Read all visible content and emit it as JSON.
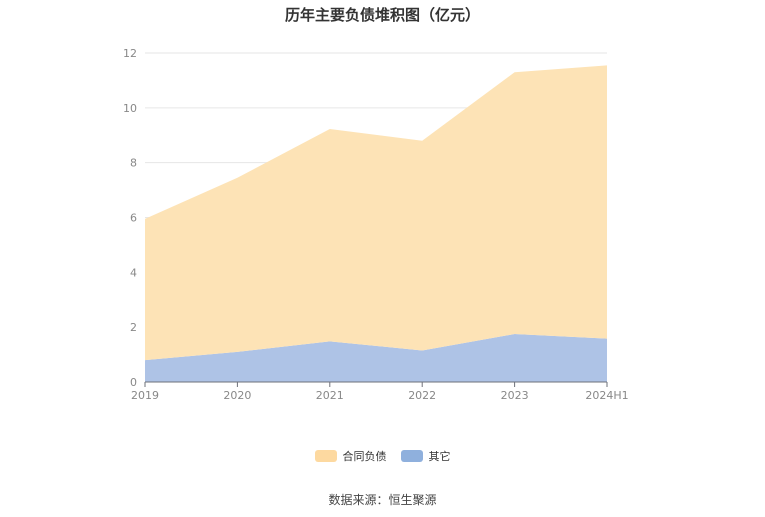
{
  "chart_data": {
    "type": "area",
    "stacked": true,
    "title": "历年主要负债堆积图（亿元）",
    "categories": [
      "2019",
      "2020",
      "2021",
      "2022",
      "2023",
      "2024H1"
    ],
    "y_ticks": [
      "0",
      "2",
      "4",
      "6",
      "8",
      "10",
      "12"
    ],
    "ylim": [
      0,
      12
    ],
    "grid": true,
    "legend_position": "bottom",
    "series": [
      {
        "name": "其它",
        "color": "#aec3e6",
        "swatch_color": "#8fb0dd",
        "values": [
          0.8,
          1.1,
          1.48,
          1.15,
          1.75,
          1.58
        ]
      },
      {
        "name": "合同负债",
        "color": "#fde3b6",
        "swatch_color": "#fdd9a0",
        "values": [
          5.15,
          6.35,
          7.75,
          7.65,
          9.55,
          9.97
        ]
      }
    ]
  },
  "source_text": "数据来源：恒生聚源"
}
